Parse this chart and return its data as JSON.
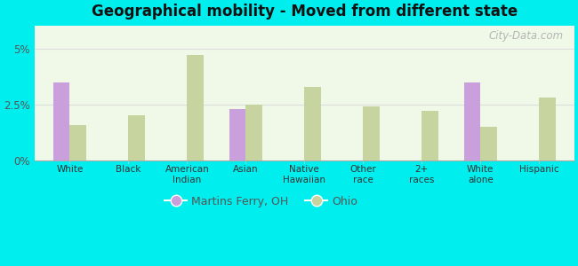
{
  "title": "Geographical mobility - Moved from different state",
  "categories": [
    "White",
    "Black",
    "American\nIndian",
    "Asian",
    "Native\nHawaiian",
    "Other\nrace",
    "2+\nraces",
    "White\nalone",
    "Hispanic"
  ],
  "martins_ferry": [
    3.5,
    0.0,
    0.0,
    2.3,
    0.0,
    0.0,
    0.0,
    3.5,
    0.0
  ],
  "ohio": [
    1.6,
    2.0,
    4.7,
    2.5,
    3.3,
    2.4,
    2.2,
    1.5,
    2.8
  ],
  "martins_ferry_color": "#c9a0dc",
  "ohio_color": "#c8d4a0",
  "background_color": "#00eeee",
  "ylim": [
    0,
    6.0
  ],
  "yticks": [
    0,
    2.5,
    5
  ],
  "ytick_labels": [
    "0%",
    "2.5%",
    "5%"
  ],
  "bar_width": 0.28,
  "legend_martins": "Martins Ferry, OH",
  "legend_ohio": "Ohio",
  "watermark": "City-Data.com"
}
